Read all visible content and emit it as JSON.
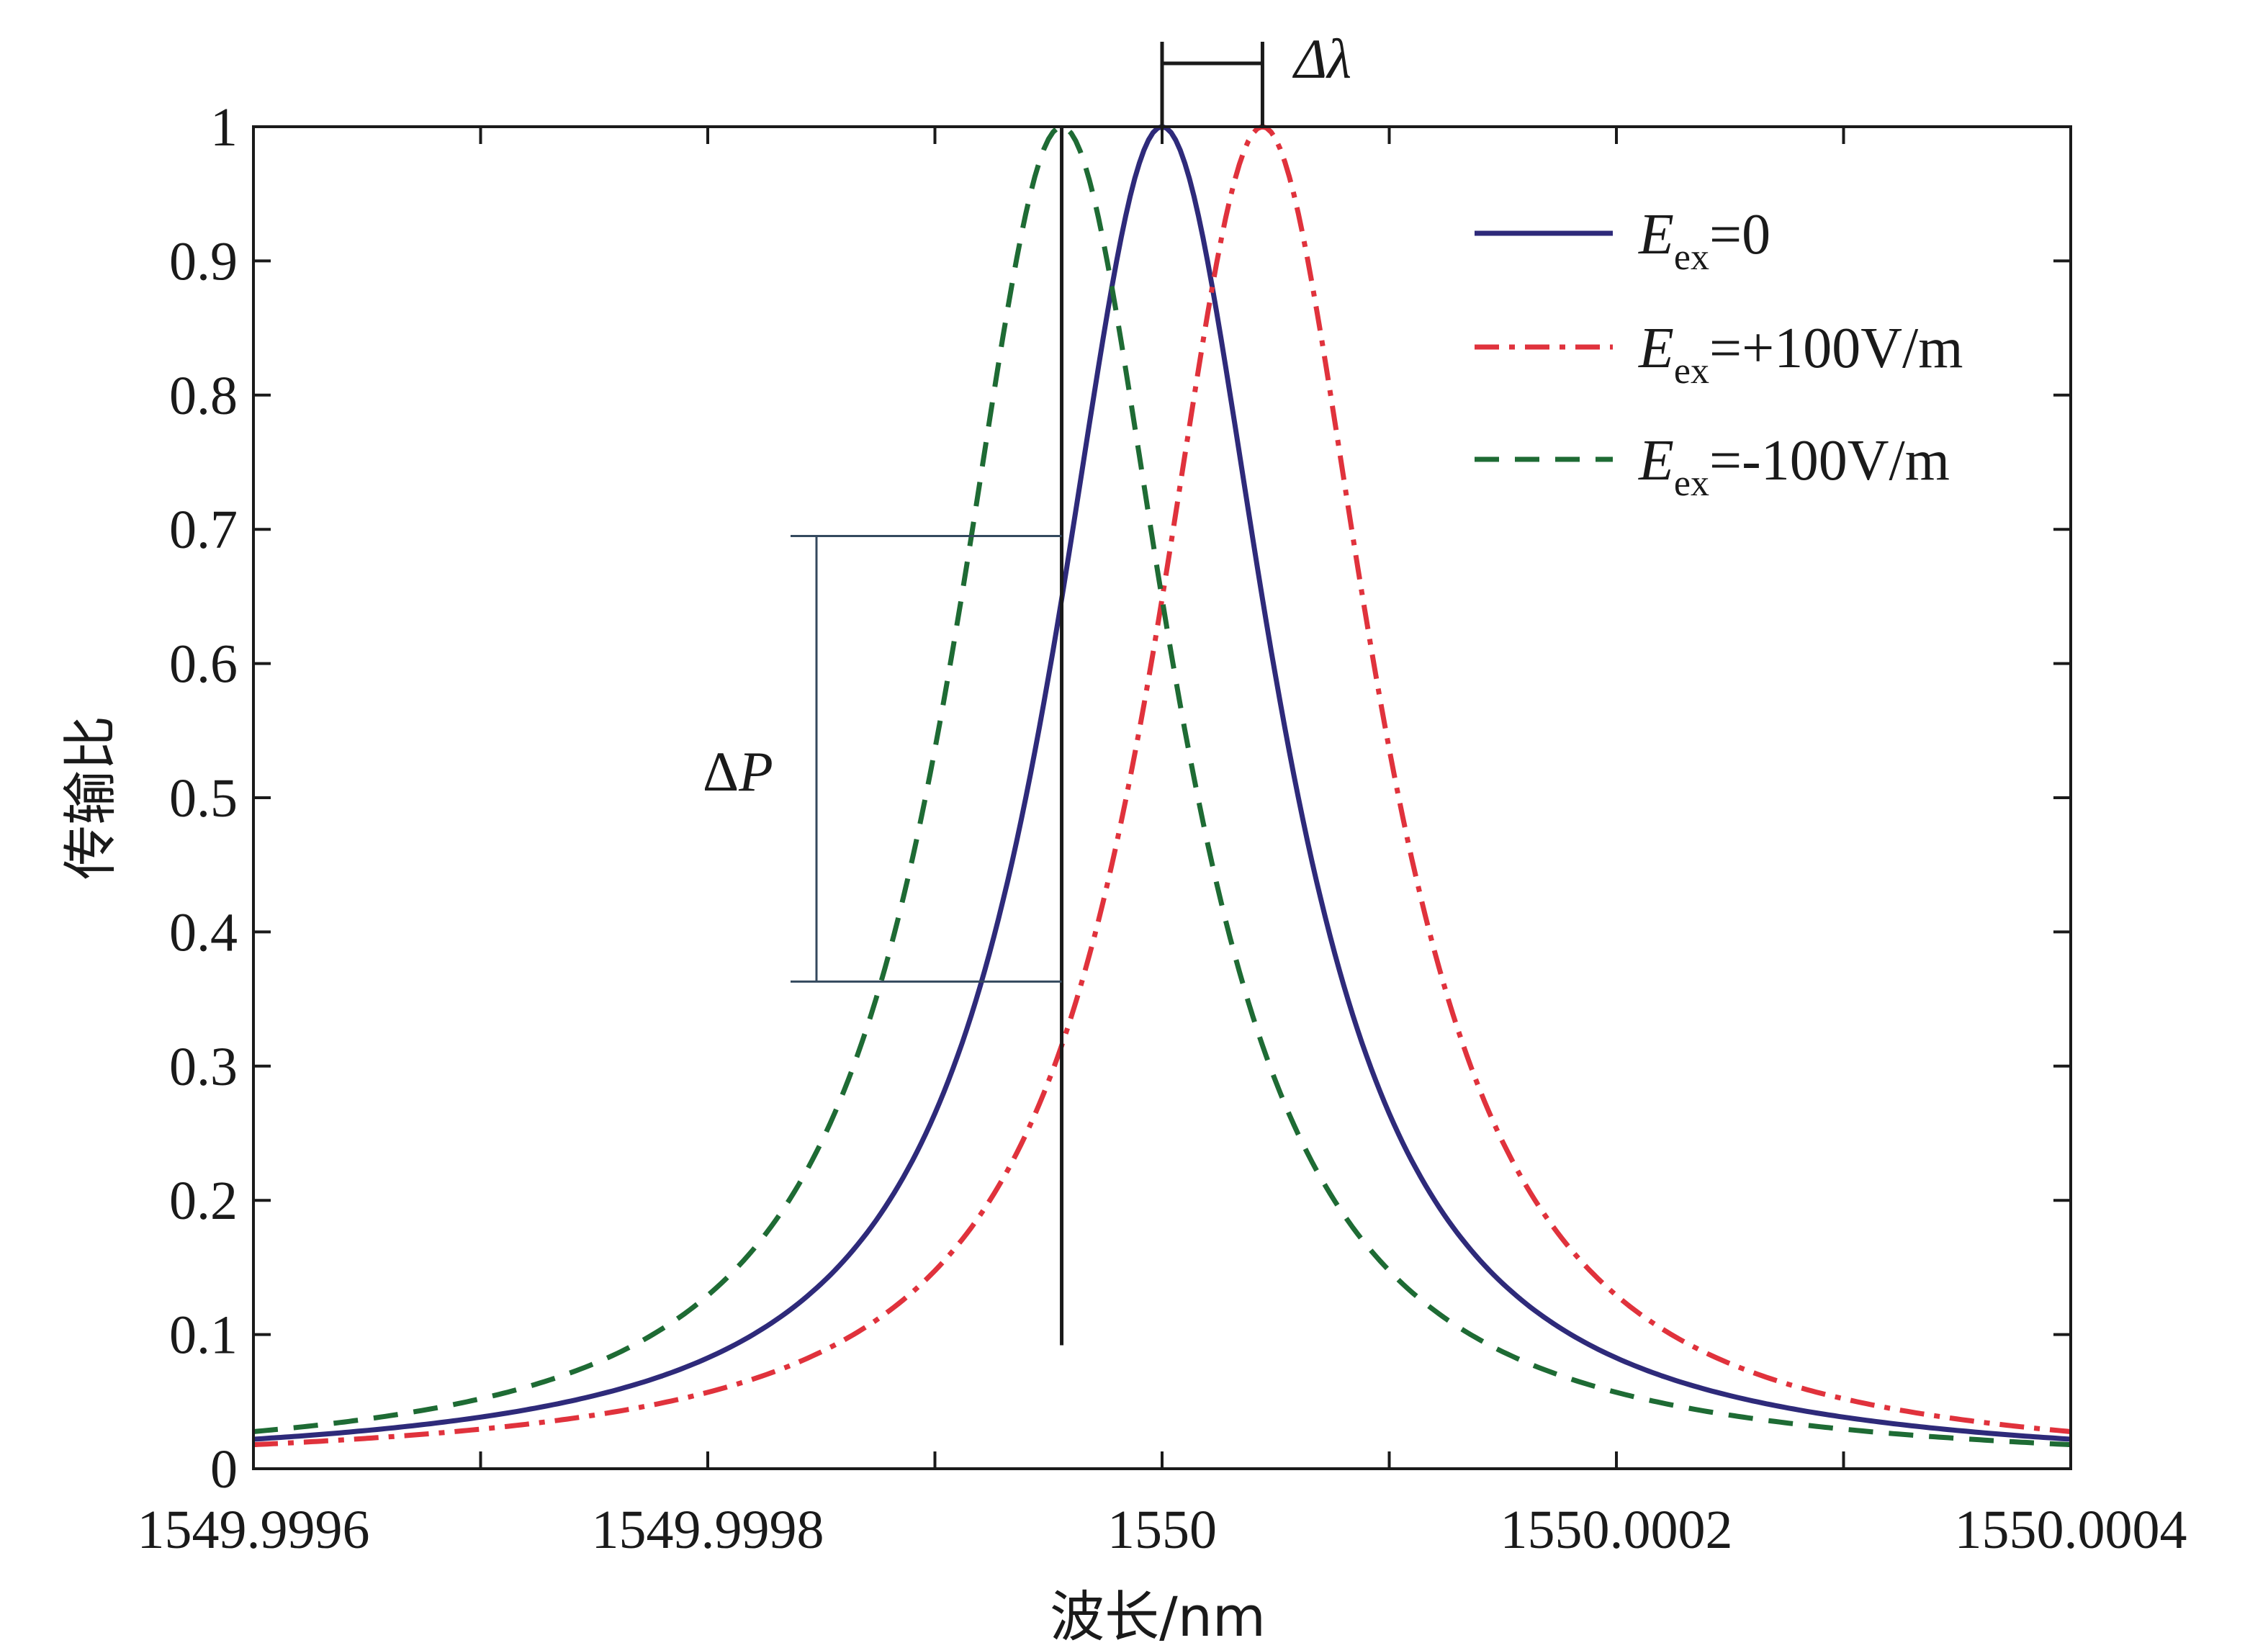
{
  "chart_data": {
    "type": "line",
    "xlabel": "波长/nm",
    "ylabel": "传输比",
    "xlim": [
      1549.9996,
      1550.0004
    ],
    "ylim": [
      0,
      1
    ],
    "x_ticks": [
      "1549.9996",
      "1549.9998",
      "1550",
      "1550.0002",
      "1550.0004"
    ],
    "y_ticks": [
      "0",
      "0.1",
      "0.2",
      "0.3",
      "0.4",
      "0.5",
      "0.6",
      "0.7",
      "0.8",
      "0.9",
      "1"
    ],
    "grid": false,
    "legend": "top-right",
    "series": [
      {
        "name": "E_ex=0",
        "legend_main": "E",
        "legend_sub": "ex",
        "legend_rest": "=0",
        "color": "#2e2a7a",
        "dash": "solid",
        "peak_x": 1550.0,
        "half_width": 6e-05,
        "peak_y": 1
      },
      {
        "name": "E_ex=+100V/m",
        "legend_main": "E",
        "legend_sub": "ex",
        "legend_rest": "=+100V/m",
        "color": "#e0323c",
        "dash": "dash-dot",
        "peak_x": 1550.0000442,
        "half_width": 6e-05,
        "peak_y": 1
      },
      {
        "name": "E_ex=-100V/m",
        "legend_main": "E",
        "legend_sub": "ex",
        "legend_rest": "=-100V/m",
        "color": "#1e6b34",
        "dash": "dashed",
        "peak_x": 1549.9999558,
        "half_width": 6e-05,
        "peak_y": 1
      }
    ],
    "annotations": {
      "delta_lambda": {
        "label": "Δλ",
        "from_x": 1550.0,
        "to_x": 1550.0000442
      },
      "delta_p": {
        "label_main": "Δ",
        "label_italic": "P",
        "x": 1549.9999558,
        "y_top": 0.695,
        "y_bottom": 0.363
      },
      "marker_line_x": 1549.9999558
    }
  }
}
